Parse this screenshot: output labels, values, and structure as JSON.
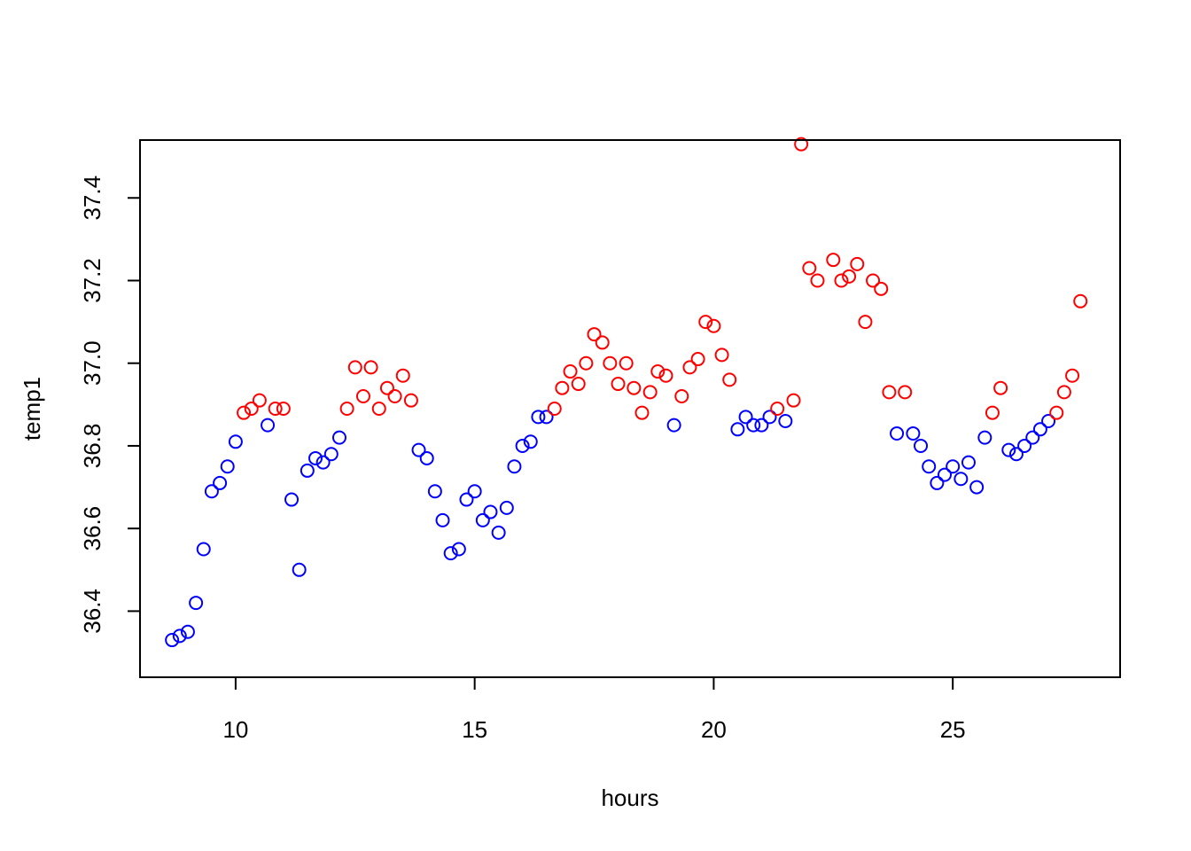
{
  "chart_data": {
    "type": "scatter",
    "title": "",
    "xlabel": "hours",
    "ylabel": "temp1",
    "xlim": [
      8.0,
      28.5
    ],
    "ylim": [
      36.24,
      37.54
    ],
    "grid": false,
    "legend": null,
    "x_ticks": [
      10,
      15,
      20,
      25
    ],
    "x_tick_labels": [
      "10",
      "15",
      "20",
      "25"
    ],
    "y_ticks": [
      36.4,
      36.6,
      36.8,
      37.0,
      37.2,
      37.4
    ],
    "y_tick_labels": [
      "36.4",
      "36.6",
      "36.8",
      "37.0",
      "37.2",
      "37.4"
    ],
    "series": [
      {
        "color": "#0000ff",
        "marker": "open-circle",
        "points": [
          [
            8.67,
            36.33
          ],
          [
            8.83,
            36.34
          ],
          [
            9.0,
            36.35
          ],
          [
            9.17,
            36.42
          ],
          [
            9.33,
            36.55
          ],
          [
            9.5,
            36.69
          ],
          [
            9.67,
            36.71
          ],
          [
            9.83,
            36.75
          ],
          [
            10.0,
            36.81
          ],
          [
            10.67,
            36.85
          ],
          [
            11.17,
            36.67
          ],
          [
            11.33,
            36.5
          ],
          [
            11.5,
            36.74
          ],
          [
            11.67,
            36.77
          ],
          [
            11.83,
            36.76
          ],
          [
            12.0,
            36.78
          ],
          [
            12.17,
            36.82
          ],
          [
            13.83,
            36.79
          ],
          [
            14.0,
            36.77
          ],
          [
            14.17,
            36.69
          ],
          [
            14.33,
            36.62
          ],
          [
            14.5,
            36.54
          ],
          [
            14.67,
            36.55
          ],
          [
            14.83,
            36.67
          ],
          [
            15.0,
            36.69
          ],
          [
            15.17,
            36.62
          ],
          [
            15.33,
            36.64
          ],
          [
            15.5,
            36.59
          ],
          [
            15.67,
            36.65
          ],
          [
            15.83,
            36.75
          ],
          [
            16.0,
            36.8
          ],
          [
            16.17,
            36.81
          ],
          [
            16.33,
            36.87
          ],
          [
            16.5,
            36.87
          ],
          [
            19.17,
            36.85
          ],
          [
            20.5,
            36.84
          ],
          [
            20.67,
            36.87
          ],
          [
            20.83,
            36.85
          ],
          [
            21.0,
            36.85
          ],
          [
            21.17,
            36.87
          ],
          [
            21.5,
            36.86
          ],
          [
            23.83,
            36.83
          ],
          [
            24.17,
            36.83
          ],
          [
            24.33,
            36.8
          ],
          [
            24.5,
            36.75
          ],
          [
            24.67,
            36.71
          ],
          [
            24.83,
            36.73
          ],
          [
            25.0,
            36.75
          ],
          [
            25.17,
            36.72
          ],
          [
            25.33,
            36.76
          ],
          [
            25.5,
            36.7
          ],
          [
            25.67,
            36.82
          ],
          [
            26.17,
            36.79
          ],
          [
            26.33,
            36.78
          ],
          [
            26.5,
            36.8
          ],
          [
            26.67,
            36.82
          ],
          [
            26.83,
            36.84
          ],
          [
            27.0,
            36.86
          ]
        ]
      },
      {
        "color": "#ff0000",
        "marker": "open-circle",
        "points": [
          [
            10.17,
            36.88
          ],
          [
            10.33,
            36.89
          ],
          [
            10.5,
            36.91
          ],
          [
            10.83,
            36.89
          ],
          [
            11.0,
            36.89
          ],
          [
            12.33,
            36.89
          ],
          [
            12.5,
            36.99
          ],
          [
            12.67,
            36.92
          ],
          [
            12.83,
            36.99
          ],
          [
            13.0,
            36.89
          ],
          [
            13.17,
            36.94
          ],
          [
            13.33,
            36.92
          ],
          [
            13.5,
            36.97
          ],
          [
            13.67,
            36.91
          ],
          [
            16.67,
            36.89
          ],
          [
            16.83,
            36.94
          ],
          [
            17.0,
            36.98
          ],
          [
            17.17,
            36.95
          ],
          [
            17.33,
            37.0
          ],
          [
            17.5,
            37.07
          ],
          [
            17.67,
            37.05
          ],
          [
            17.83,
            37.0
          ],
          [
            18.0,
            36.95
          ],
          [
            18.17,
            37.0
          ],
          [
            18.33,
            36.94
          ],
          [
            18.5,
            36.88
          ],
          [
            18.67,
            36.93
          ],
          [
            18.83,
            36.98
          ],
          [
            19.0,
            36.97
          ],
          [
            19.33,
            36.92
          ],
          [
            19.5,
            36.99
          ],
          [
            19.67,
            37.01
          ],
          [
            19.83,
            37.1
          ],
          [
            20.0,
            37.09
          ],
          [
            20.17,
            37.02
          ],
          [
            20.33,
            36.96
          ],
          [
            21.33,
            36.89
          ],
          [
            21.67,
            36.91
          ],
          [
            21.83,
            37.53
          ],
          [
            22.0,
            37.23
          ],
          [
            22.17,
            37.2
          ],
          [
            22.5,
            37.25
          ],
          [
            22.67,
            37.2
          ],
          [
            22.83,
            37.21
          ],
          [
            23.0,
            37.24
          ],
          [
            23.17,
            37.1
          ],
          [
            23.33,
            37.2
          ],
          [
            23.5,
            37.18
          ],
          [
            23.67,
            36.93
          ],
          [
            24.0,
            36.93
          ],
          [
            25.83,
            36.88
          ],
          [
            26.0,
            36.94
          ],
          [
            27.17,
            36.88
          ],
          [
            27.33,
            36.93
          ],
          [
            27.5,
            36.97
          ],
          [
            27.67,
            37.15
          ]
        ]
      }
    ]
  }
}
